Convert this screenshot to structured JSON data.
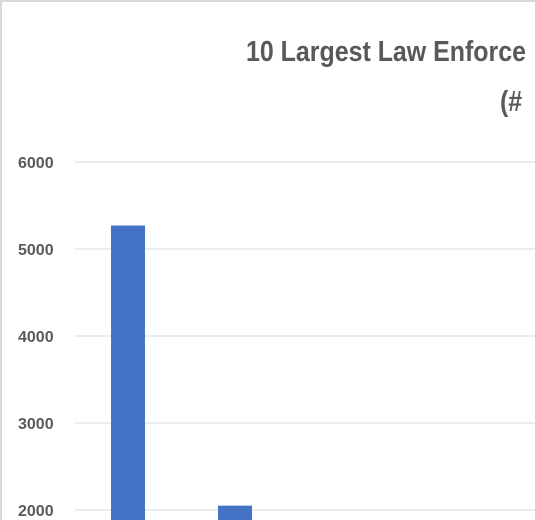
{
  "chart_data": {
    "type": "bar",
    "title_line1": "10 Largest Law Enforce",
    "title_line2": "(#",
    "categories": [
      "",
      ""
    ],
    "values": [
      5270,
      2050
    ],
    "ylim": [
      2000,
      6000
    ],
    "yticks": [
      2000,
      3000,
      4000,
      5000,
      6000
    ],
    "grid": true,
    "colors": {
      "bar": "#4472c4",
      "grid": "#d9d9d9",
      "text": "#595959"
    }
  }
}
